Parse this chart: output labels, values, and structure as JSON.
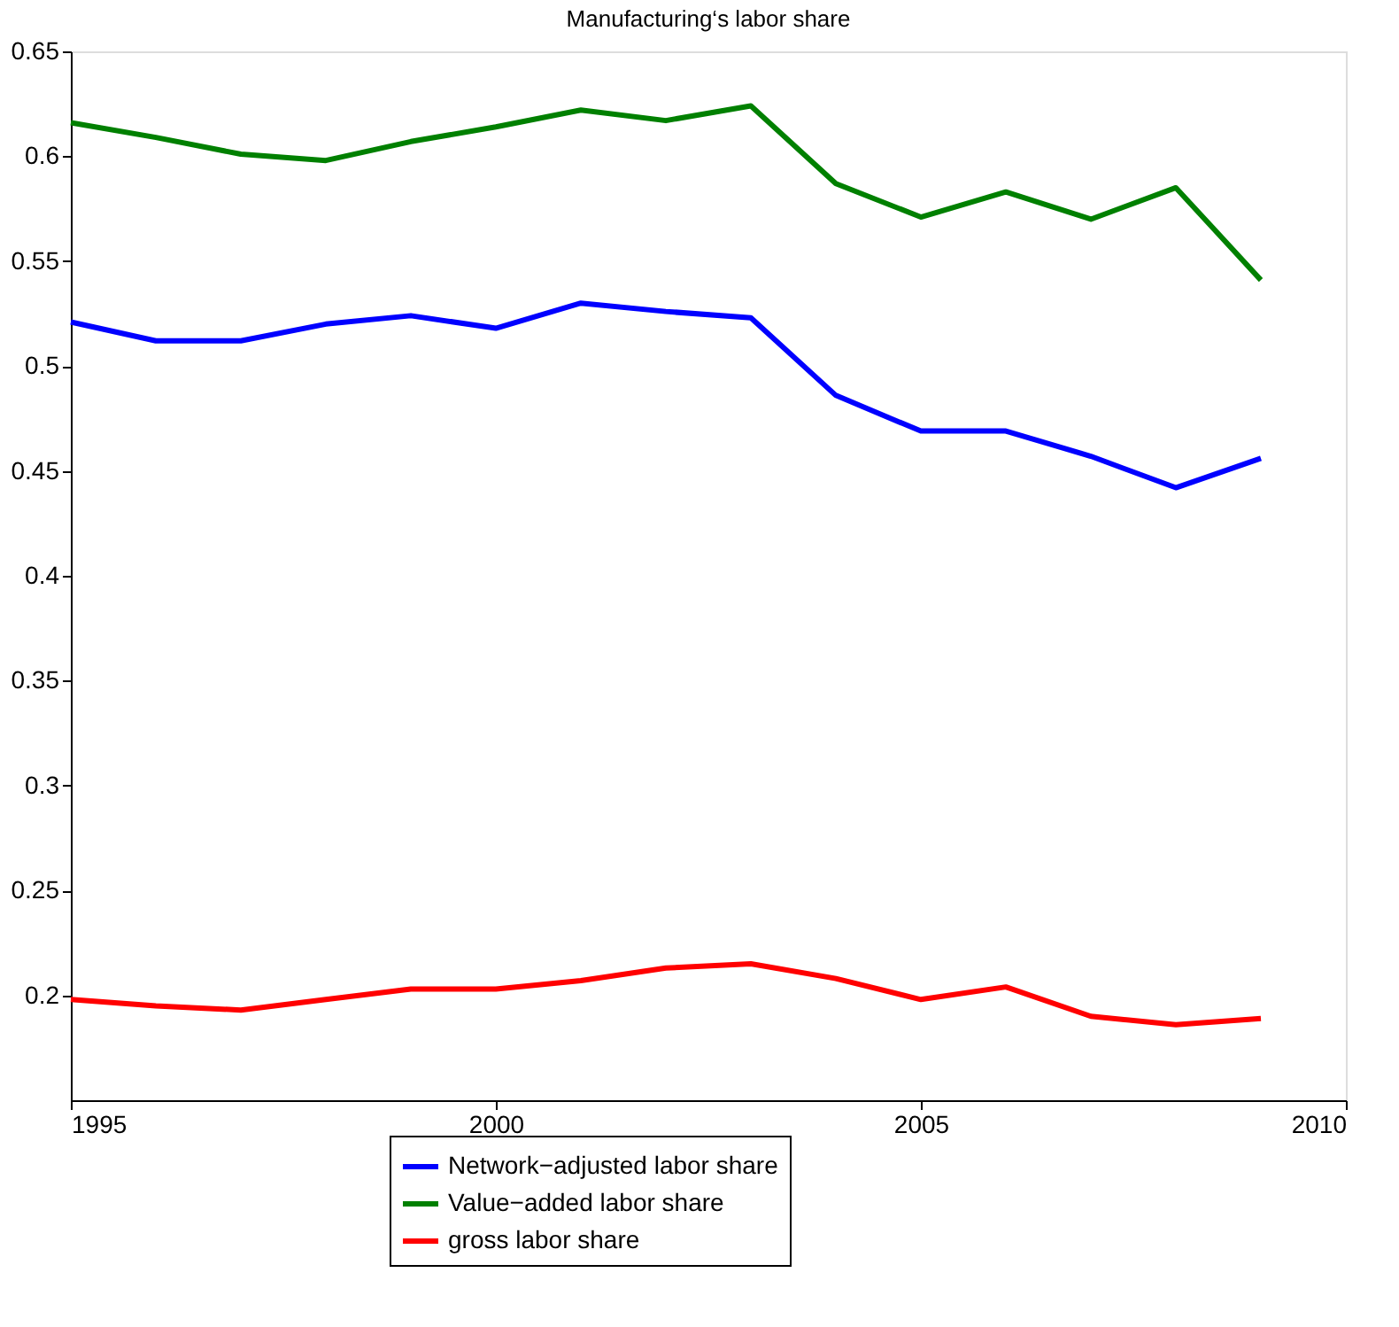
{
  "chart_data": {
    "type": "line",
    "title": "Manufacturing‘s labor share",
    "x": [
      1995,
      1996,
      1997,
      1998,
      1999,
      2000,
      2001,
      2002,
      2003,
      2004,
      2005,
      2006,
      2007,
      2008,
      2009
    ],
    "series": [
      {
        "name": "Network−adjusted labor share",
        "color": "#0000ff",
        "values": [
          0.521,
          0.512,
          0.512,
          0.52,
          0.524,
          0.518,
          0.53,
          0.526,
          0.523,
          0.486,
          0.469,
          0.469,
          0.457,
          0.442,
          0.456
        ]
      },
      {
        "name": "Value−added labor share",
        "color": "#008000",
        "values": [
          0.616,
          0.609,
          0.601,
          0.598,
          0.607,
          0.614,
          0.622,
          0.617,
          0.624,
          0.587,
          0.571,
          0.583,
          0.57,
          0.585,
          0.541
        ]
      },
      {
        "name": "gross labor share",
        "color": "#ff0000",
        "values": [
          0.198,
          0.195,
          0.193,
          0.198,
          0.203,
          0.203,
          0.207,
          0.213,
          0.215,
          0.208,
          0.198,
          0.204,
          0.19,
          0.186,
          0.189
        ]
      }
    ],
    "xlim": [
      1995,
      2010
    ],
    "xticks": [
      1995,
      2000,
      2005,
      2010
    ],
    "ylim": [
      0.15,
      0.65
    ],
    "yticks": [
      0.2,
      0.25,
      0.3,
      0.35,
      0.4,
      0.45,
      0.5,
      0.55,
      0.6,
      0.65
    ],
    "grid": false,
    "legend": "bottom",
    "marker": "none",
    "line_style": "solid"
  }
}
